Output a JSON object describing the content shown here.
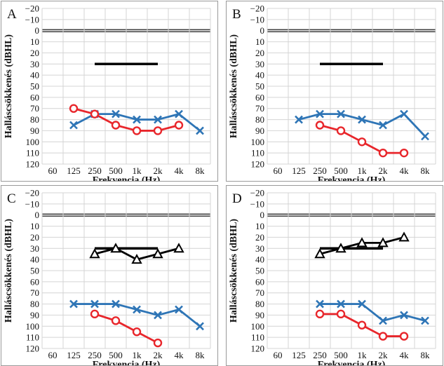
{
  "chart_data": [
    {
      "type": "line",
      "panel_label": "A",
      "xlabel": "Frekvencia (Hz)",
      "ylabel": "Halláscsökkenés (dBHL)",
      "categories": [
        "60",
        "125",
        "250",
        "500",
        "1k",
        "2k",
        "4k",
        "8k"
      ],
      "yticks": [
        "−20",
        "−10",
        "0",
        "10",
        "20",
        "30",
        "40",
        "50",
        "60",
        "70",
        "80",
        "90",
        "100",
        "110",
        "120"
      ],
      "ylim": [
        -20,
        120
      ],
      "y_inverted": true,
      "grid": true,
      "series": [
        {
          "marker": "line",
          "color": "#000000",
          "values": [
            null,
            null,
            30,
            30,
            30,
            30,
            null,
            null
          ]
        },
        {
          "marker": "x",
          "color": "#2e75b6",
          "values": [
            null,
            85,
            75,
            75,
            80,
            80,
            75,
            90
          ]
        },
        {
          "marker": "circle",
          "color": "#e8262b",
          "values": [
            null,
            70,
            75,
            85,
            90,
            90,
            85,
            null
          ]
        }
      ]
    },
    {
      "type": "line",
      "panel_label": "B",
      "xlabel": "Frekvencia (Hz)",
      "ylabel": "Halláscsökkenés (dBHL)",
      "categories": [
        "60",
        "125",
        "250",
        "500",
        "1k",
        "2k",
        "4k",
        "8k"
      ],
      "yticks": [
        "−20",
        "−10",
        "0",
        "10",
        "20",
        "30",
        "40",
        "50",
        "60",
        "70",
        "80",
        "90",
        "100",
        "110",
        "120"
      ],
      "ylim": [
        -20,
        120
      ],
      "y_inverted": true,
      "grid": true,
      "series": [
        {
          "marker": "line",
          "color": "#000000",
          "values": [
            null,
            null,
            30,
            30,
            30,
            30,
            null,
            null
          ]
        },
        {
          "marker": "x",
          "color": "#2e75b6",
          "values": [
            null,
            80,
            75,
            75,
            80,
            85,
            75,
            95
          ]
        },
        {
          "marker": "circle",
          "color": "#e8262b",
          "values": [
            null,
            null,
            85,
            90,
            100,
            110,
            110,
            null
          ]
        }
      ]
    },
    {
      "type": "line",
      "panel_label": "C",
      "xlabel": "Frekvencia (Hz)",
      "ylabel": "Halláscsökkenés (dBHL)",
      "categories": [
        "60",
        "125",
        "250",
        "500",
        "1k",
        "2k",
        "4k",
        "8k"
      ],
      "yticks": [
        "−20",
        "−10",
        "0",
        "10",
        "20",
        "30",
        "40",
        "50",
        "60",
        "70",
        "80",
        "90",
        "100",
        "110",
        "120"
      ],
      "ylim": [
        -20,
        120
      ],
      "y_inverted": true,
      "grid": true,
      "series": [
        {
          "marker": "line",
          "color": "#000000",
          "values": [
            null,
            null,
            30,
            30,
            30,
            30,
            null,
            null
          ]
        },
        {
          "marker": "triangle",
          "color": "#000000",
          "values": [
            null,
            null,
            35,
            30,
            40,
            35,
            30,
            null
          ]
        },
        {
          "marker": "x",
          "color": "#2e75b6",
          "values": [
            null,
            80,
            80,
            80,
            85,
            90,
            85,
            100
          ]
        },
        {
          "marker": "circle",
          "color": "#e8262b",
          "values": [
            null,
            null,
            89,
            95,
            105,
            115,
            null,
            null
          ]
        }
      ]
    },
    {
      "type": "line",
      "panel_label": "D",
      "xlabel": "Frekvencia (Hz)",
      "ylabel": "Halláscsökkenés (dBHL)",
      "categories": [
        "60",
        "125",
        "250",
        "500",
        "1k",
        "2k",
        "4k",
        "8k"
      ],
      "yticks": [
        "−20",
        "−10",
        "0",
        "10",
        "20",
        "30",
        "40",
        "50",
        "60",
        "70",
        "80",
        "90",
        "100",
        "110",
        "120"
      ],
      "ylim": [
        -20,
        120
      ],
      "y_inverted": true,
      "grid": true,
      "series": [
        {
          "marker": "line",
          "color": "#000000",
          "values": [
            null,
            null,
            30,
            30,
            30,
            30,
            null,
            null
          ]
        },
        {
          "marker": "triangle",
          "color": "#000000",
          "values": [
            null,
            null,
            35,
            30,
            25,
            25,
            20,
            null
          ]
        },
        {
          "marker": "x",
          "color": "#2e75b6",
          "values": [
            null,
            null,
            80,
            80,
            80,
            95,
            90,
            95
          ]
        },
        {
          "marker": "circle",
          "color": "#e8262b",
          "values": [
            null,
            null,
            89,
            89,
            99,
            109,
            109,
            null
          ]
        }
      ]
    }
  ]
}
